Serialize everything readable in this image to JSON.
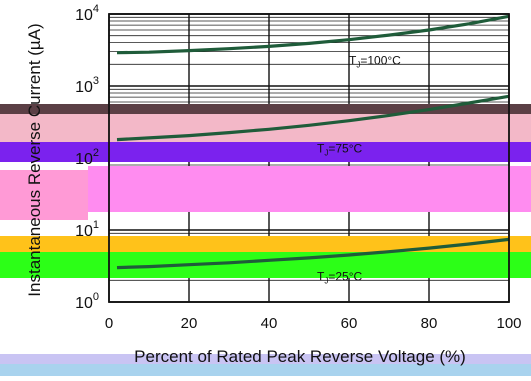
{
  "chart_data": {
    "type": "line",
    "title": "",
    "xlabel": "Percent of Rated Peak Reverse Voltage (%)",
    "ylabel": "Instantaneous Reverse Current (µA)",
    "x_scale": "linear",
    "y_scale": "log",
    "xlim": [
      0,
      100
    ],
    "ylim": [
      1,
      10000
    ],
    "x_ticks": [
      "0",
      "20",
      "40",
      "60",
      "80",
      "100"
    ],
    "y_ticks": [
      {
        "base": "10",
        "exp": "0",
        "value": 1
      },
      {
        "base": "10",
        "exp": "1",
        "value": 10
      },
      {
        "base": "10",
        "exp": "2",
        "value": 100
      },
      {
        "base": "10",
        "exp": "3",
        "value": 1000
      },
      {
        "base": "10",
        "exp": "4",
        "value": 10000
      }
    ],
    "grid": true,
    "series": [
      {
        "name": "TJ=100°C",
        "label_text": "T",
        "label_sub": "J",
        "label_rest": "=100°C",
        "color": "#1f5c3a",
        "x": [
          2,
          10,
          20,
          30,
          40,
          50,
          60,
          70,
          80,
          90,
          100
        ],
        "y": [
          2900,
          2950,
          3100,
          3300,
          3550,
          3900,
          4400,
          5100,
          6000,
          7300,
          9300
        ]
      },
      {
        "name": "TJ=75°C",
        "label_text": "T",
        "label_sub": "J",
        "label_rest": "=75°C",
        "color": "#1f5c3a",
        "x": [
          2,
          10,
          20,
          30,
          40,
          50,
          60,
          70,
          80,
          90,
          100
        ],
        "y": [
          180,
          190,
          205,
          225,
          250,
          285,
          330,
          390,
          470,
          580,
          720
        ]
      },
      {
        "name": "TJ=25°C",
        "label_text": "T",
        "label_sub": "J",
        "label_rest": "=25°C",
        "color": "#1f5c3a",
        "x": [
          2,
          10,
          20,
          30,
          40,
          50,
          60,
          70,
          80,
          90,
          100
        ],
        "y": [
          3,
          3.1,
          3.3,
          3.5,
          3.8,
          4.1,
          4.5,
          5.0,
          5.6,
          6.4,
          7.4
        ]
      }
    ],
    "band_colors": {
      "dark_band": "#5b3f45",
      "rose_band": "#f3b8c8",
      "purple_band": "#7b22ee",
      "magenta_band": "#ff8cf0",
      "pink_band": "#ff9ad6",
      "orange_band": "#ffc21a",
      "green_band": "#2cff17",
      "lavender_band": "#c9c4f3",
      "blue_band": "#a9d3ee"
    }
  }
}
